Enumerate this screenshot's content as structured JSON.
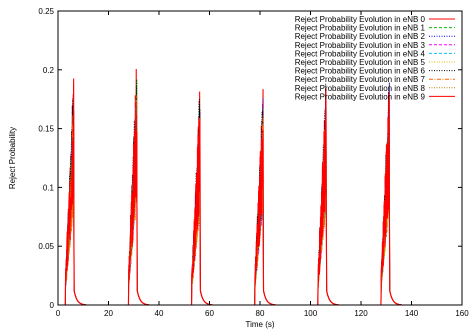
{
  "chart_data": {
    "type": "line",
    "xlabel": "Time (s)",
    "ylabel": "Reject Probability",
    "xlim": [
      0,
      160
    ],
    "ylim": [
      0,
      0.25
    ],
    "x_ticks": [
      "0",
      "20",
      "40",
      "60",
      "80",
      "100",
      "120",
      "140",
      "160"
    ],
    "y_ticks": [
      "0",
      "0.05",
      "0.1",
      "0.15",
      "0.2",
      "0.25"
    ],
    "grid": false,
    "legend_position": "top-right",
    "burst_centers": [
      5.5,
      30.5,
      55.5,
      80.5,
      105.5,
      130.5
    ],
    "burst_peaks": [
      0.2,
      0.215,
      0.19,
      0.19,
      0.2,
      0.2
    ],
    "series": [
      {
        "name": "Reject Probability Evolution in eNB 0",
        "color": "#ff0000",
        "dash": "solid",
        "peak_scale": 1.0
      },
      {
        "name": "Reject Probability Evolution in eNB 1",
        "color": "#00c000",
        "dash": "dash",
        "peak_scale": 0.92
      },
      {
        "name": "Reject Probability Evolution in eNB 2",
        "color": "#0000ff",
        "dash": "dot",
        "peak_scale": 0.95
      },
      {
        "name": "Reject Probability Evolution in eNB 3",
        "color": "#ff00ff",
        "dash": "dash",
        "peak_scale": 0.9
      },
      {
        "name": "Reject Probability Evolution in eNB 4",
        "color": "#00c0ff",
        "dash": "dash",
        "peak_scale": 0.93
      },
      {
        "name": "Reject Probability Evolution in eNB 5",
        "color": "#e0c000",
        "dash": "dot",
        "peak_scale": 0.88
      },
      {
        "name": "Reject Probability Evolution in eNB 6",
        "color": "#000000",
        "dash": "dot",
        "peak_scale": 1.02
      },
      {
        "name": "Reject Probability Evolution in eNB 7",
        "color": "#ff6000",
        "dash": "dashdot",
        "peak_scale": 0.9
      },
      {
        "name": "Reject Probability Evolution in eNB 8",
        "color": "#c08000",
        "dash": "dot",
        "peak_scale": 0.86
      },
      {
        "name": "Reject Probability Evolution in eNB 9",
        "color": "#ff0000",
        "dash": "solid",
        "peak_scale": 0.97
      }
    ]
  }
}
